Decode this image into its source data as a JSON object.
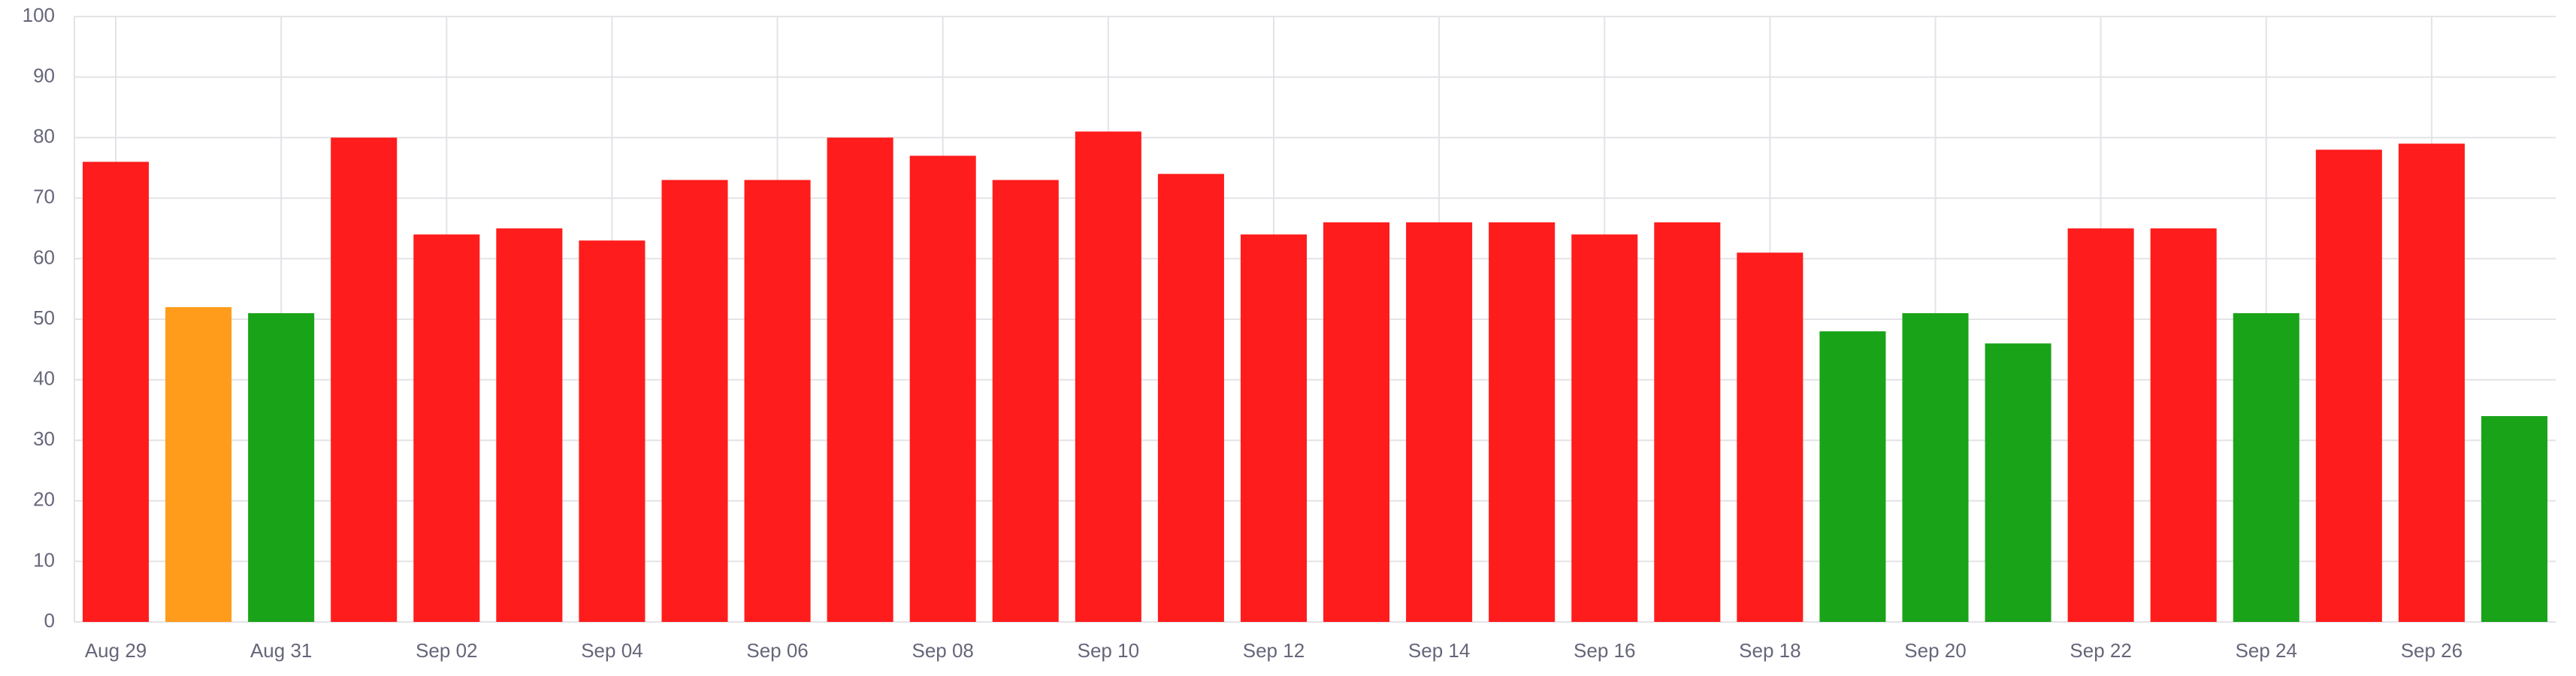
{
  "chart_data": {
    "type": "bar",
    "categories": [
      "Aug 29",
      null,
      "Aug 31",
      null,
      "Sep 02",
      null,
      "Sep 04",
      null,
      "Sep 06",
      null,
      "Sep 08",
      null,
      "Sep 10",
      null,
      "Sep 12",
      null,
      "Sep 14",
      null,
      "Sep 16",
      null,
      "Sep 18",
      null,
      "Sep 20",
      null,
      "Sep 22",
      null,
      "Sep 24",
      null,
      "Sep 26",
      null
    ],
    "values": [
      76,
      52,
      51,
      80,
      64,
      65,
      63,
      73,
      73,
      80,
      77,
      73,
      81,
      74,
      64,
      66,
      66,
      66,
      64,
      66,
      61,
      48,
      51,
      46,
      65,
      65,
      51,
      78,
      79,
      34
    ],
    "colors": [
      "#ff1c1c",
      "#ff9c1c",
      "#19a319",
      "#ff1c1c",
      "#ff1c1c",
      "#ff1c1c",
      "#ff1c1c",
      "#ff1c1c",
      "#ff1c1c",
      "#ff1c1c",
      "#ff1c1c",
      "#ff1c1c",
      "#ff1c1c",
      "#ff1c1c",
      "#ff1c1c",
      "#ff1c1c",
      "#ff1c1c",
      "#ff1c1c",
      "#ff1c1c",
      "#ff1c1c",
      "#ff1c1c",
      "#19a319",
      "#19a319",
      "#19a319",
      "#ff1c1c",
      "#ff1c1c",
      "#19a319",
      "#ff1c1c",
      "#ff1c1c",
      "#19a319"
    ],
    "ylim": [
      0,
      100
    ],
    "yticks": [
      0,
      10,
      20,
      30,
      40,
      50,
      60,
      70,
      80,
      90,
      100
    ],
    "grid": true
  }
}
